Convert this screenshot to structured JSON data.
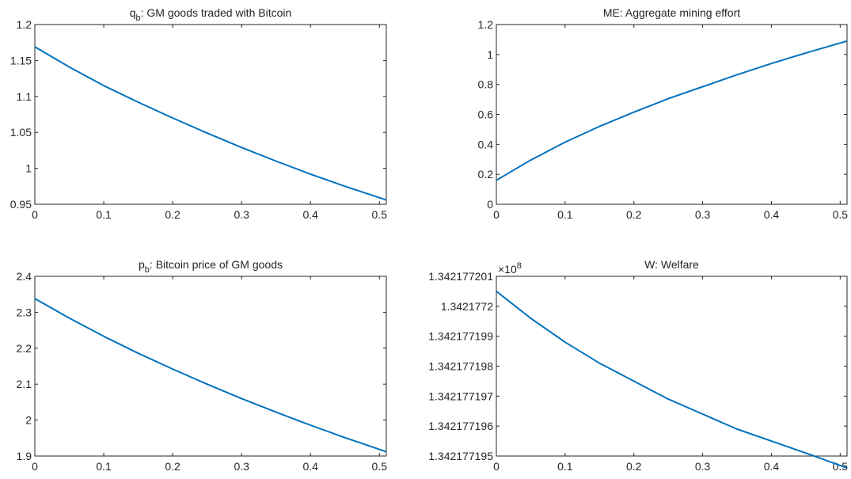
{
  "chart_data": [
    {
      "type": "line",
      "title": "q_b: GM goods traded with Bitcoin",
      "title_parts": {
        "main": "q",
        "sub": "b",
        "rest": ": GM goods traded with Bitcoin"
      },
      "xlim": [
        0,
        0.51
      ],
      "ylim": [
        0.95,
        1.2
      ],
      "xticks": [
        0,
        0.1,
        0.2,
        0.3,
        0.4,
        0.5
      ],
      "xticklabels": [
        "0",
        "0.1",
        "0.2",
        "0.3",
        "0.4",
        "0.5"
      ],
      "yticks": [
        0.95,
        1.0,
        1.05,
        1.1,
        1.15,
        1.2
      ],
      "yticklabels": [
        "0.95",
        "1",
        "1.05",
        "1.1",
        "1.15",
        "1.2"
      ],
      "x": [
        0,
        0.05,
        0.1,
        0.15,
        0.2,
        0.25,
        0.3,
        0.35,
        0.4,
        0.45,
        0.51
      ],
      "y": [
        1.169,
        1.141,
        1.115,
        1.092,
        1.07,
        1.049,
        1.029,
        1.01,
        0.992,
        0.975,
        0.956
      ],
      "color": "#0072BD"
    },
    {
      "type": "line",
      "title": "ME: Aggregate mining effort",
      "xlim": [
        0,
        0.51
      ],
      "ylim": [
        0,
        1.2
      ],
      "xticks": [
        0,
        0.1,
        0.2,
        0.3,
        0.4,
        0.5
      ],
      "xticklabels": [
        "0",
        "0.1",
        "0.2",
        "0.3",
        "0.4",
        "0.5"
      ],
      "yticks": [
        0,
        0.2,
        0.4,
        0.6,
        0.8,
        1.0,
        1.2
      ],
      "yticklabels": [
        "0",
        "0.2",
        "0.4",
        "0.6",
        "0.8",
        "1",
        "1.2"
      ],
      "x": [
        0,
        0.05,
        0.1,
        0.15,
        0.2,
        0.25,
        0.3,
        0.35,
        0.4,
        0.45,
        0.51
      ],
      "y": [
        0.16,
        0.295,
        0.415,
        0.52,
        0.615,
        0.705,
        0.785,
        0.865,
        0.94,
        1.01,
        1.09
      ],
      "color": "#0072BD"
    },
    {
      "type": "line",
      "title": "p_b: Bitcoin price of GM goods",
      "title_parts": {
        "main": "p",
        "sub": "b",
        "rest": ": Bitcoin price of GM goods"
      },
      "xlim": [
        0,
        0.51
      ],
      "ylim": [
        1.9,
        2.4
      ],
      "xticks": [
        0,
        0.1,
        0.2,
        0.3,
        0.4,
        0.5
      ],
      "xticklabels": [
        "0",
        "0.1",
        "0.2",
        "0.3",
        "0.4",
        "0.5"
      ],
      "yticks": [
        1.9,
        2.0,
        2.1,
        2.2,
        2.3,
        2.4
      ],
      "yticklabels": [
        "1.9",
        "2",
        "2.1",
        "2.2",
        "2.3",
        "2.4"
      ],
      "x": [
        0,
        0.05,
        0.1,
        0.15,
        0.2,
        0.25,
        0.3,
        0.35,
        0.4,
        0.45,
        0.51
      ],
      "y": [
        2.338,
        2.284,
        2.233,
        2.186,
        2.142,
        2.1,
        2.06,
        2.022,
        1.986,
        1.951,
        1.912
      ],
      "color": "#0072BD"
    },
    {
      "type": "line",
      "title": "W: Welfare",
      "exponent_label": {
        "base": "×10",
        "power": "8"
      },
      "xlim": [
        0,
        0.51
      ],
      "ylim": [
        1.342177195,
        1.342177201
      ],
      "xticks": [
        0,
        0.1,
        0.2,
        0.3,
        0.4,
        0.5
      ],
      "xticklabels": [
        "0",
        "0.1",
        "0.2",
        "0.3",
        "0.4",
        "0.5"
      ],
      "yticks": [
        1.342177195,
        1.342177196,
        1.342177197,
        1.342177198,
        1.342177199,
        1.3421772,
        1.342177201
      ],
      "yticklabels": [
        "1.342177195",
        "1.342177196",
        "1.342177197",
        "1.342177198",
        "1.342177199",
        "1.3421772",
        "1.342177201"
      ],
      "x": [
        0,
        0.05,
        0.1,
        0.15,
        0.2,
        0.25,
        0.3,
        0.35,
        0.4,
        0.45,
        0.51
      ],
      "y": [
        1.3421772005,
        1.3421771996,
        1.3421771988,
        1.3421771981,
        1.3421771975,
        1.3421771969,
        1.3421771964,
        1.3421771959,
        1.3421771955,
        1.3421771951,
        1.3421771946
      ],
      "color": "#0072BD"
    }
  ]
}
